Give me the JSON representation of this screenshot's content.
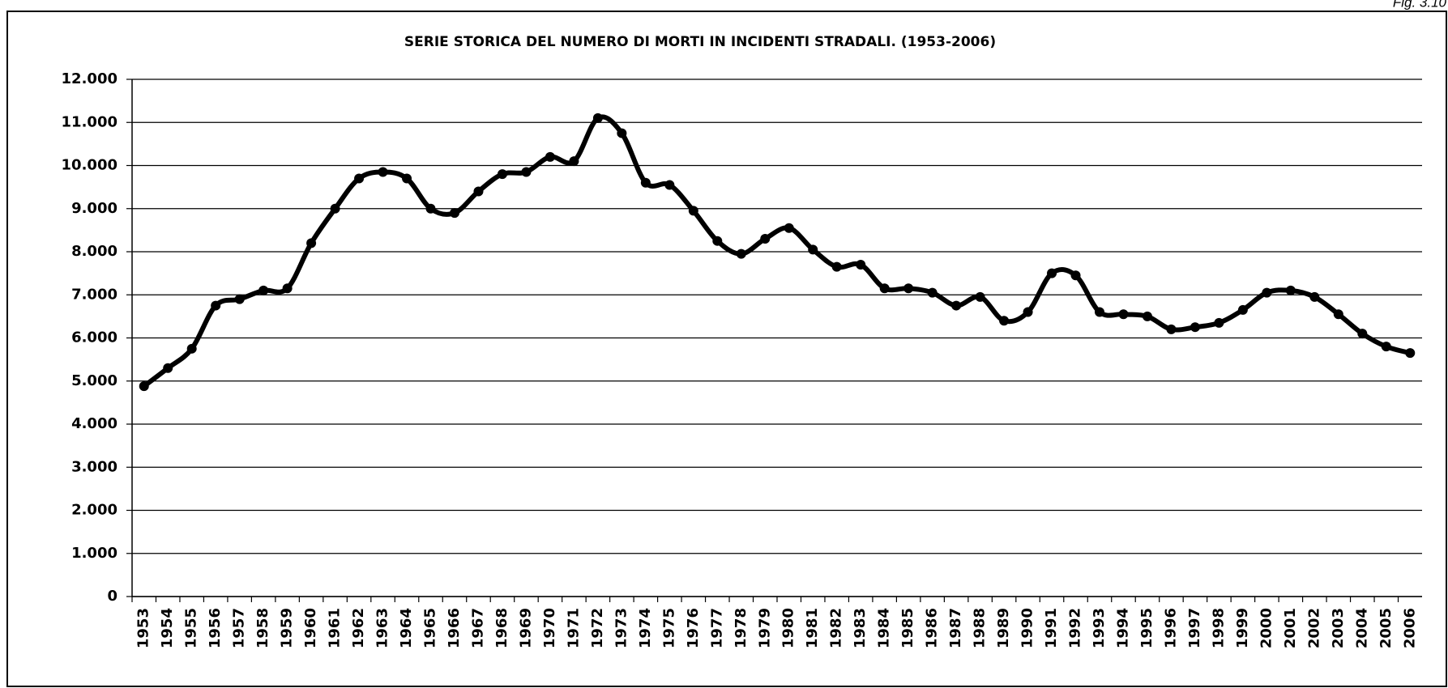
{
  "figure_label": "Fig. 3.10",
  "chart_data": {
    "type": "line",
    "title": "SERIE STORICA DEL NUMERO DI MORTI IN INCIDENTI STRADALI. (1953-2006)",
    "categories": [
      "1953",
      "1954",
      "1955",
      "1956",
      "1957",
      "1958",
      "1959",
      "1960",
      "1961",
      "1962",
      "1963",
      "1964",
      "1965",
      "1966",
      "1967",
      "1968",
      "1969",
      "1970",
      "1971",
      "1972",
      "1973",
      "1974",
      "1975",
      "1976",
      "1977",
      "1978",
      "1979",
      "1980",
      "1981",
      "1982",
      "1983",
      "1984",
      "1985",
      "1986",
      "1987",
      "1988",
      "1989",
      "1990",
      "1991",
      "1992",
      "1993",
      "1994",
      "1995",
      "1996",
      "1997",
      "1998",
      "1999",
      "2000",
      "2001",
      "2002",
      "2003",
      "2004",
      "2005",
      "2006"
    ],
    "values": [
      4880,
      5300,
      5750,
      6750,
      6900,
      7100,
      7150,
      8200,
      9000,
      9700,
      9850,
      9700,
      9000,
      8900,
      9400,
      9800,
      9850,
      10200,
      10100,
      11100,
      10750,
      9600,
      9550,
      8950,
      8250,
      7950,
      8300,
      8550,
      8050,
      7650,
      7700,
      7150,
      7150,
      7050,
      6750,
      6950,
      6400,
      6600,
      7500,
      7450,
      6600,
      6550,
      6500,
      6200,
      6250,
      6350,
      6650,
      7050,
      7100,
      6950,
      6550,
      6100,
      5800,
      5650
    ],
    "color": "#000000",
    "ylim": [
      0,
      12000
    ],
    "yticks": [
      0,
      {
        "value": 1000,
        "label": "1.000"
      },
      {
        "value": 2000,
        "label": "2.000"
      },
      {
        "value": 3000,
        "label": "3.000"
      },
      {
        "value": 4000,
        "label": "4.000"
      },
      {
        "value": 5000,
        "label": "5.000"
      },
      {
        "value": 6000,
        "label": "6.000"
      },
      {
        "value": 7000,
        "label": "7.000"
      },
      {
        "value": 8000,
        "label": "8.000"
      },
      {
        "value": 9000,
        "label": "9.000"
      },
      {
        "value": 10000,
        "label": "10.000"
      },
      {
        "value": 11000,
        "label": "11.000"
      },
      {
        "value": 12000,
        "label": "12.000"
      }
    ],
    "grid": true
  }
}
